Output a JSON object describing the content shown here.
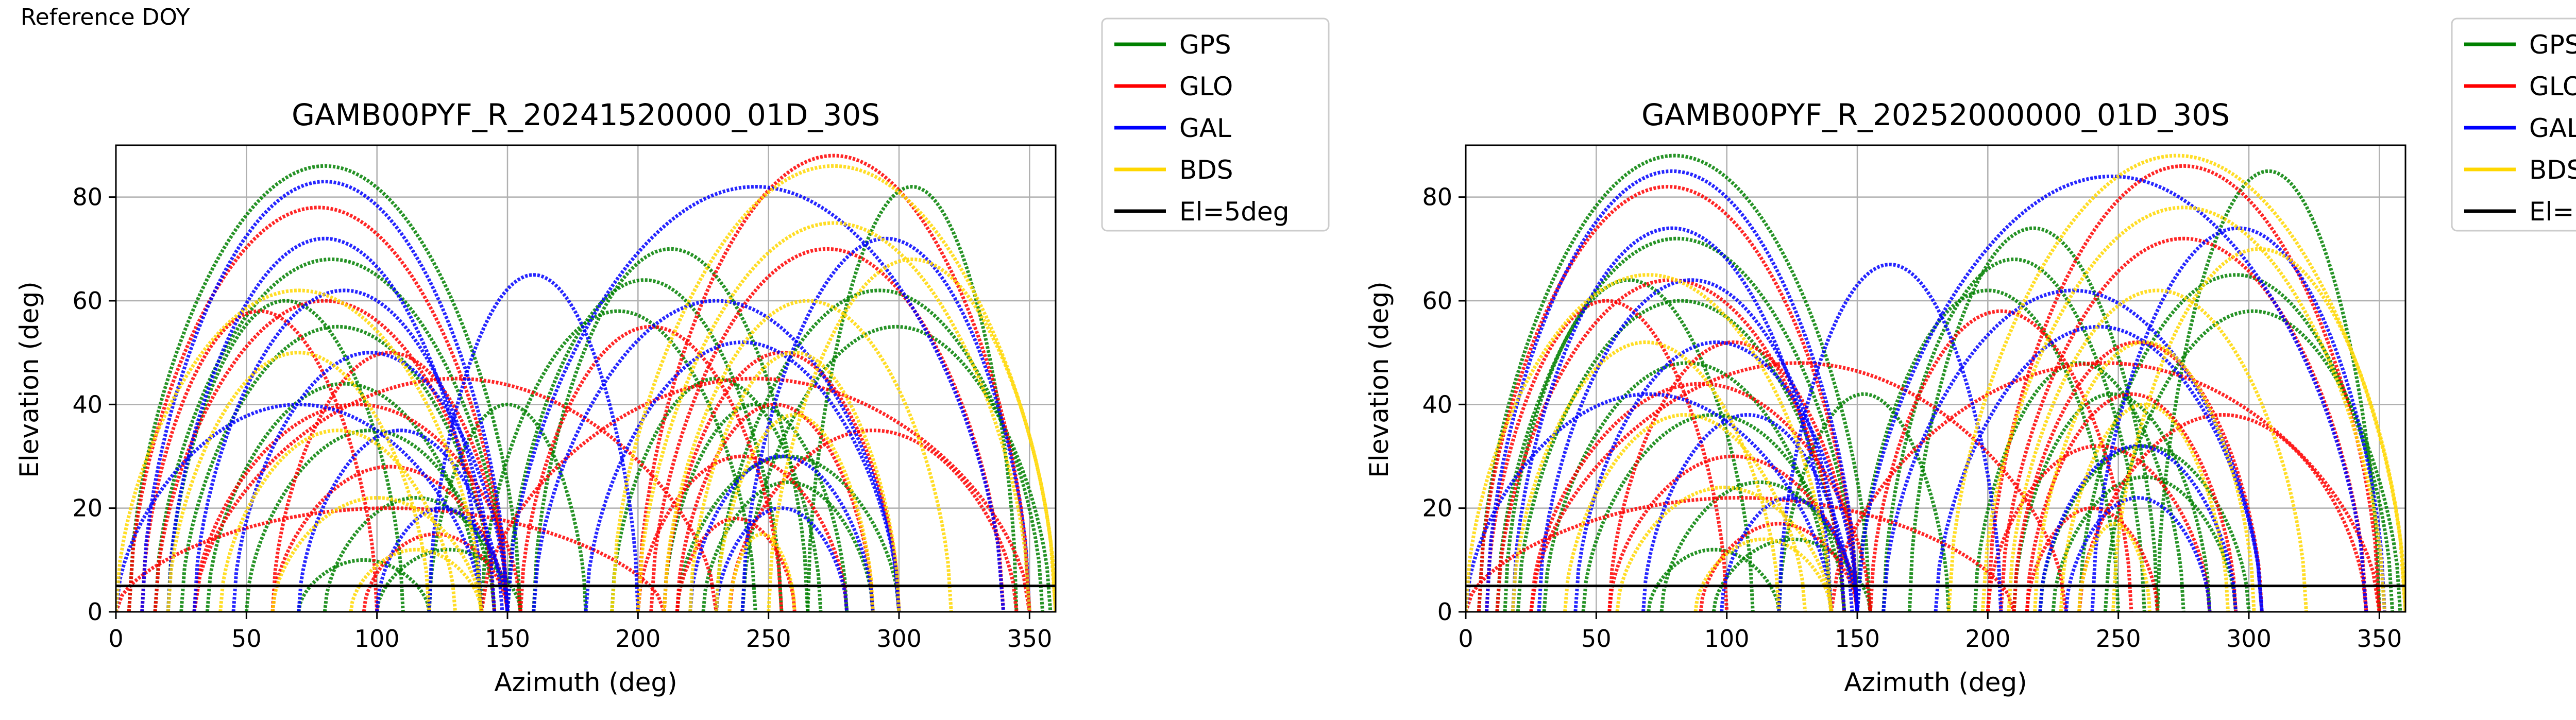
{
  "figure": {
    "page_label": "Reference DOY"
  },
  "legend": [
    {
      "name": "GPS",
      "color": "#008000"
    },
    {
      "name": "GLO",
      "color": "#ff0000"
    },
    {
      "name": "GAL",
      "color": "#0000ff"
    },
    {
      "name": "BDS",
      "color": "#ffd700"
    },
    {
      "name": "El=5deg",
      "color": "#000000"
    }
  ],
  "chart_data": [
    {
      "type": "scatter",
      "title": "GAMB00PYF_R_20241520000_01D_30S",
      "xlabel": "Azimuth (deg)",
      "ylabel": "Elevation (deg)",
      "xlim": [
        0,
        360
      ],
      "ylim": [
        0,
        90
      ],
      "xticks": [
        0,
        50,
        100,
        150,
        200,
        250,
        300,
        350
      ],
      "yticks": [
        0,
        20,
        40,
        60,
        80
      ],
      "grid": true,
      "legend_position": "outside-right",
      "reference_line": {
        "name": "El=5deg",
        "y": 5
      },
      "series": [
        {
          "name": "GPS",
          "color": "#008000",
          "arcs": [
            [
              5,
              155,
              86
            ],
            [
              15,
              150,
              68
            ],
            [
              25,
              145,
              55
            ],
            [
              35,
              140,
              44
            ],
            [
              50,
              145,
              35
            ],
            [
              80,
              150,
              22
            ],
            [
              100,
              155,
              12
            ],
            [
              140,
              245,
              58
            ],
            [
              150,
              255,
              64
            ],
            [
              160,
              265,
              70
            ],
            [
              190,
              270,
              45
            ],
            [
              210,
              280,
              40
            ],
            [
              215,
              300,
              30
            ],
            [
              225,
              290,
              25
            ],
            [
              230,
              355,
              62
            ],
            [
              240,
              358,
              55
            ],
            [
              265,
              345,
              82
            ],
            [
              70,
              120,
              10
            ],
            [
              120,
              180,
              40
            ],
            [
              20,
              110,
              60
            ]
          ]
        },
        {
          "name": "GLO",
          "color": "#ff0000",
          "arcs": [
            [
              5,
              150,
              78
            ],
            [
              15,
              145,
              60
            ],
            [
              30,
              155,
              40
            ],
            [
              60,
              150,
              28
            ],
            [
              95,
              150,
              15
            ],
            [
              200,
              350,
              88
            ],
            [
              205,
              340,
              70
            ],
            [
              210,
              300,
              50
            ],
            [
              215,
              290,
              40
            ],
            [
              200,
              280,
              30
            ],
            [
              215,
              260,
              18
            ],
            [
              0,
              210,
              20
            ],
            [
              30,
              230,
              45
            ],
            [
              140,
              350,
              45
            ],
            [
              60,
              150,
              50
            ],
            [
              155,
              255,
              55
            ],
            [
              10,
              100,
              58
            ],
            [
              235,
              345,
              35
            ]
          ]
        },
        {
          "name": "GAL",
          "color": "#0000ff",
          "arcs": [
            [
              10,
              150,
              83
            ],
            [
              20,
              140,
              72
            ],
            [
              30,
              145,
              62
            ],
            [
              45,
              150,
              50
            ],
            [
              70,
              148,
              35
            ],
            [
              100,
              150,
              20
            ],
            [
              150,
              340,
              82
            ],
            [
              160,
              300,
              60
            ],
            [
              180,
              300,
              52
            ],
            [
              220,
              290,
              30
            ],
            [
              230,
              280,
              20
            ],
            [
              240,
              350,
              72
            ],
            [
              0,
              140,
              40
            ],
            [
              120,
              200,
              65
            ]
          ]
        },
        {
          "name": "BDS",
          "color": "#ffd700",
          "arcs": [
            [
              0,
              140,
              62
            ],
            [
              20,
              120,
              50
            ],
            [
              40,
              130,
              35
            ],
            [
              60,
              140,
              22
            ],
            [
              90,
              140,
              12
            ],
            [
              190,
              360,
              86
            ],
            [
              200,
              350,
              75
            ],
            [
              210,
              320,
              60
            ],
            [
              220,
              300,
              50
            ],
            [
              230,
              290,
              38
            ],
            [
              235,
              260,
              15
            ],
            [
              250,
              360,
              68
            ]
          ]
        }
      ]
    },
    {
      "type": "scatter",
      "title": "GAMB00PYF_R_20252000000_01D_30S",
      "xlabel": "Azimuth (deg)",
      "ylabel": "Elevation (deg)",
      "xlim": [
        0,
        360
      ],
      "ylim": [
        0,
        90
      ],
      "xticks": [
        0,
        50,
        100,
        150,
        200,
        250,
        300,
        350
      ],
      "yticks": [
        0,
        20,
        40,
        60,
        80
      ],
      "grid": true,
      "legend_position": "outside-right",
      "reference_line": {
        "name": "El=5deg",
        "y": 5
      },
      "series": [
        {
          "name": "GPS",
          "color": "#008000",
          "arcs": [
            [
              5,
              155,
              88
            ],
            [
              12,
              150,
              72
            ],
            [
              20,
              145,
              60
            ],
            [
              30,
              140,
              48
            ],
            [
              45,
              145,
              38
            ],
            [
              75,
              150,
              25
            ],
            [
              95,
              155,
              14
            ],
            [
              150,
              250,
              62
            ],
            [
              160,
              260,
              68
            ],
            [
              170,
              265,
              74
            ],
            [
              195,
              275,
              48
            ],
            [
              210,
              285,
              42
            ],
            [
              220,
              300,
              32
            ],
            [
              225,
              295,
              26
            ],
            [
              235,
              355,
              65
            ],
            [
              245,
              358,
              58
            ],
            [
              265,
              350,
              85
            ],
            [
              70,
              120,
              12
            ],
            [
              120,
              185,
              42
            ],
            [
              15,
              110,
              64
            ]
          ]
        },
        {
          "name": "GLO",
          "color": "#ff0000",
          "arcs": [
            [
              5,
              150,
              82
            ],
            [
              12,
              145,
              64
            ],
            [
              25,
              155,
              44
            ],
            [
              55,
              150,
              30
            ],
            [
              90,
              150,
              17
            ],
            [
              200,
              350,
              86
            ],
            [
              205,
              345,
              72
            ],
            [
              210,
              305,
              52
            ],
            [
              215,
              295,
              42
            ],
            [
              200,
              285,
              32
            ],
            [
              215,
              265,
              20
            ],
            [
              0,
              210,
              22
            ],
            [
              25,
              230,
              48
            ],
            [
              140,
              350,
              48
            ],
            [
              55,
              150,
              52
            ],
            [
              155,
              255,
              58
            ],
            [
              8,
              100,
              60
            ],
            [
              235,
              345,
              38
            ]
          ]
        },
        {
          "name": "GAL",
          "color": "#0000ff",
          "arcs": [
            [
              8,
              150,
              85
            ],
            [
              18,
              140,
              74
            ],
            [
              28,
              145,
              64
            ],
            [
              42,
              150,
              52
            ],
            [
              68,
              148,
              38
            ],
            [
              98,
              150,
              22
            ],
            [
              150,
              345,
              84
            ],
            [
              160,
              305,
              62
            ],
            [
              180,
              305,
              55
            ],
            [
              220,
              295,
              32
            ],
            [
              230,
              285,
              22
            ],
            [
              240,
              352,
              74
            ],
            [
              0,
              140,
              42
            ],
            [
              120,
              205,
              67
            ]
          ]
        },
        {
          "name": "BDS",
          "color": "#ffd700",
          "arcs": [
            [
              0,
              140,
              65
            ],
            [
              18,
              120,
              52
            ],
            [
              38,
              130,
              38
            ],
            [
              58,
              140,
              24
            ],
            [
              88,
              140,
              14
            ],
            [
              185,
              360,
              88
            ],
            [
              198,
              352,
              78
            ],
            [
              208,
              322,
              62
            ],
            [
              218,
              302,
              52
            ],
            [
              228,
              292,
              40
            ],
            [
              235,
              262,
              17
            ],
            [
              248,
              360,
              70
            ]
          ]
        }
      ]
    }
  ]
}
